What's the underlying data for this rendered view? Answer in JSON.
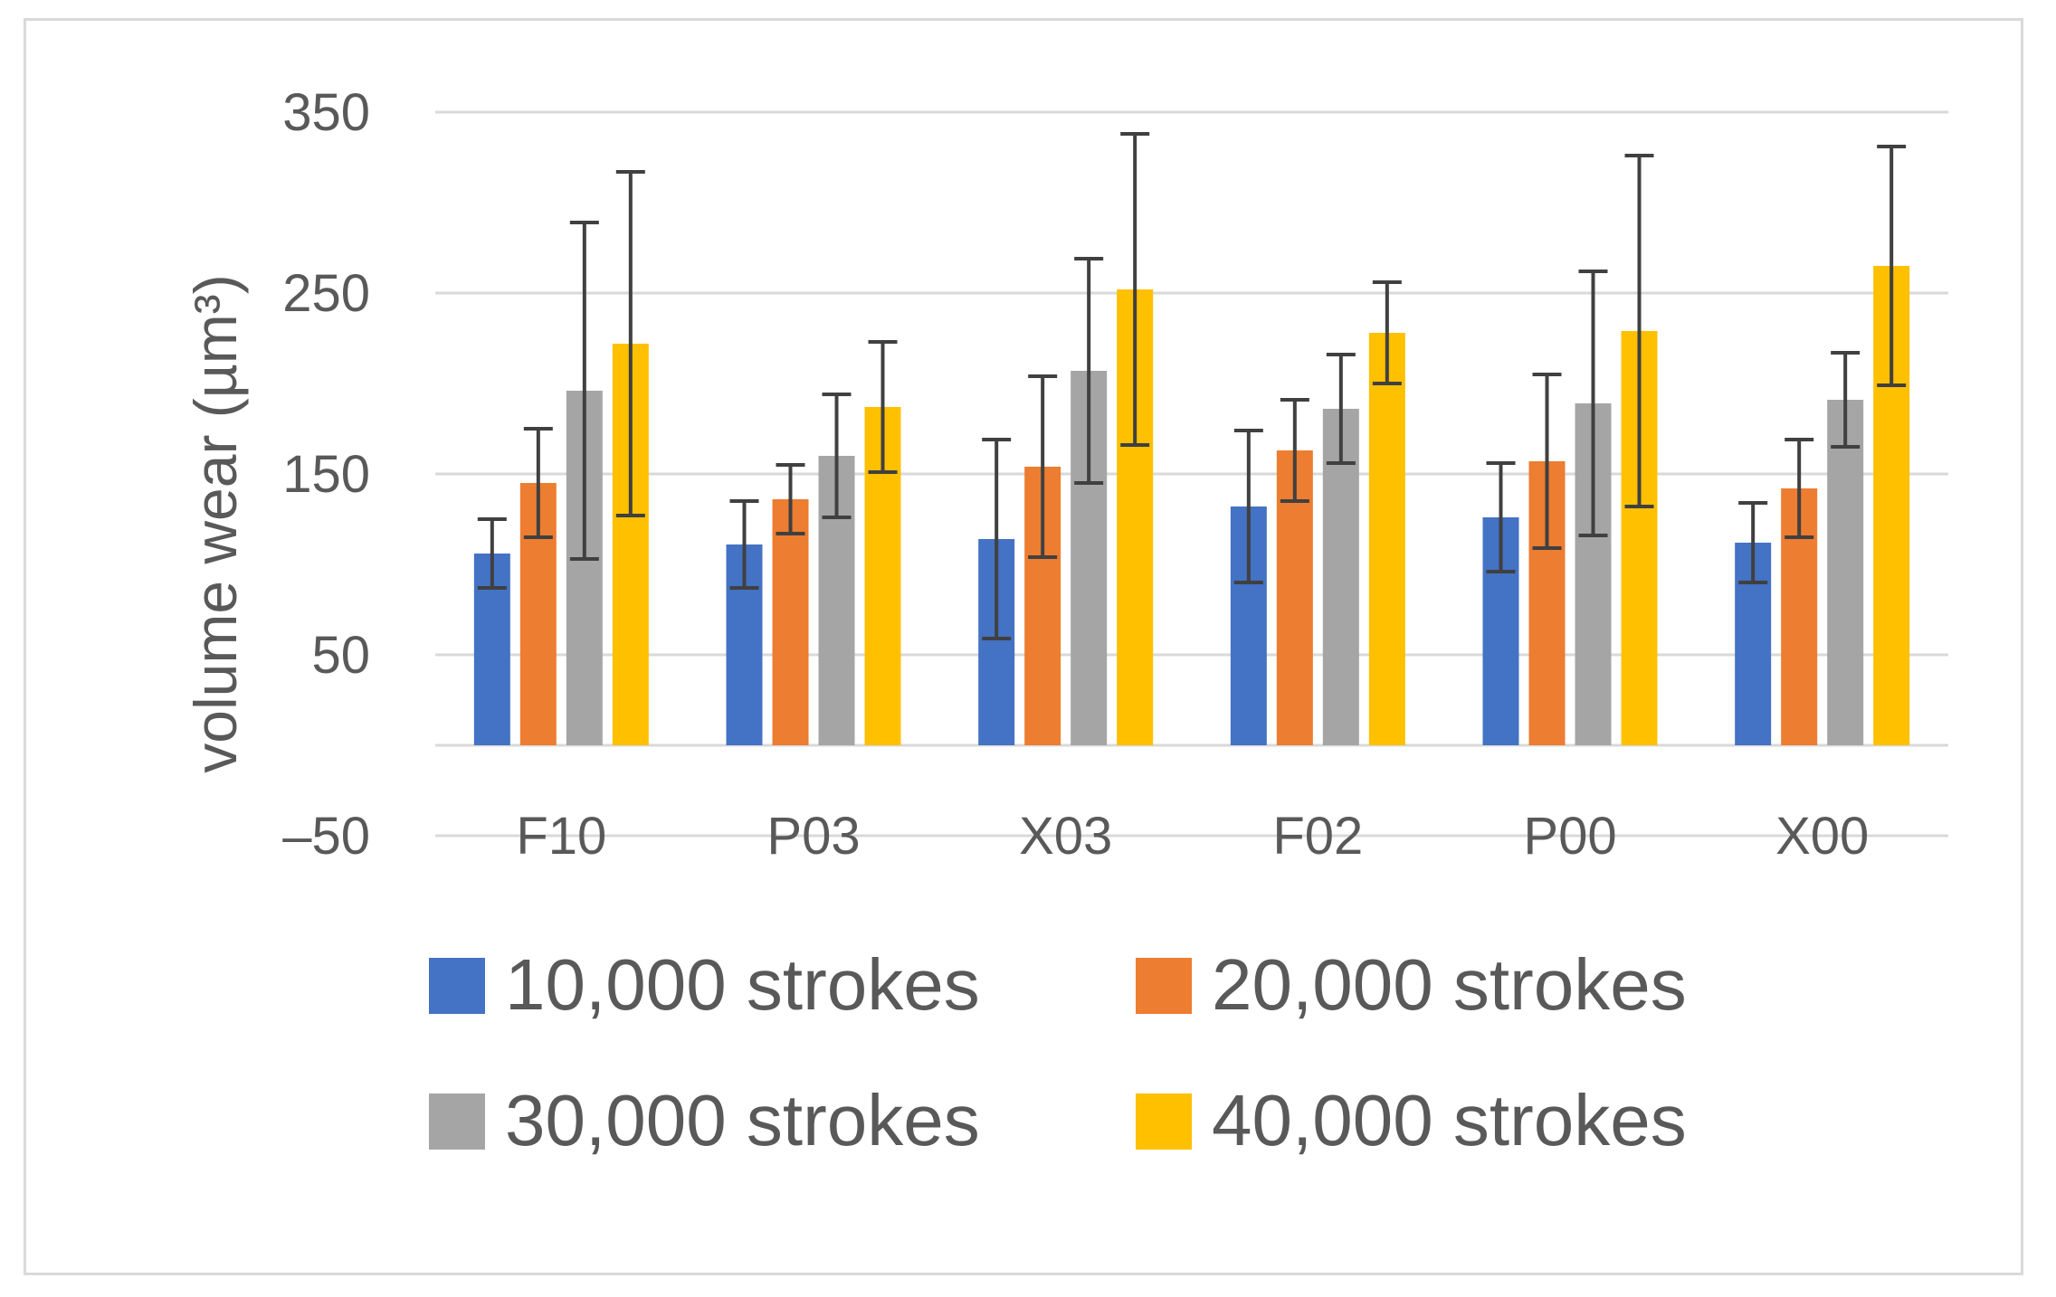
{
  "chart_data": {
    "type": "bar",
    "title": "",
    "xlabel": "",
    "ylabel": "volume wear (µm³)",
    "ylim": [
      -50,
      350
    ],
    "yticks": [
      -50,
      50,
      150,
      250,
      350
    ],
    "ytick_labels": [
      "–50",
      "50",
      "150",
      "250",
      "350"
    ],
    "grid": true,
    "legend_position": "bottom",
    "categories": [
      "F10",
      "P03",
      "X03",
      "F02",
      "P00",
      "X00"
    ],
    "series": [
      {
        "name": "10,000 strokes",
        "color": "#4472c4",
        "values": [
          106,
          111,
          114,
          132,
          126,
          112
        ],
        "errors": [
          19,
          24,
          55,
          42,
          30,
          22
        ]
      },
      {
        "name": "20,000 strokes",
        "color": "#ed7d31",
        "values": [
          145,
          136,
          154,
          163,
          157,
          142
        ],
        "errors": [
          30,
          19,
          50,
          28,
          48,
          27
        ]
      },
      {
        "name": "30,000 strokes",
        "color": "#a5a5a5",
        "values": [
          196,
          160,
          207,
          186,
          189,
          191
        ],
        "errors": [
          93,
          34,
          62,
          30,
          73,
          26
        ]
      },
      {
        "name": "40,000 strokes",
        "color": "#ffc000",
        "values": [
          222,
          187,
          252,
          228,
          229,
          265
        ],
        "errors": [
          95,
          36,
          86,
          28,
          97,
          66
        ]
      }
    ]
  }
}
